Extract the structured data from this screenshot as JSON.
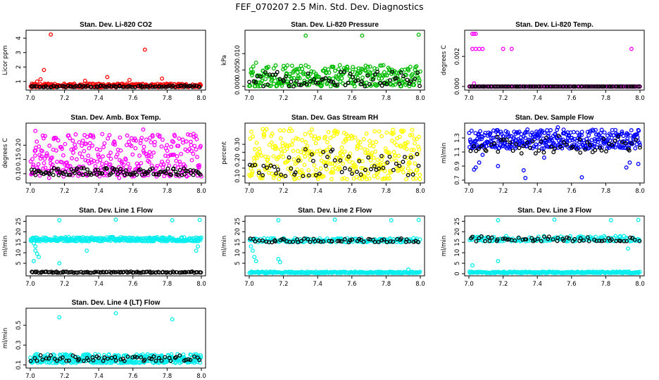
{
  "page": {
    "title": "FEF_070207  2.5 Min. Std. Dev. Diagnostics"
  },
  "chart_data": [
    {
      "type": "scatter",
      "title": "Stan. Dev. Li-820 CO2",
      "xlabel": "",
      "ylabel": "Licor ppm",
      "xlim": [
        7.0,
        8.0
      ],
      "ylim": [
        0.55,
        4.4
      ],
      "x_ticks": [
        7.0,
        7.2,
        7.4,
        7.6,
        7.8,
        8.0
      ],
      "y_ticks": [
        1,
        2,
        3,
        4
      ],
      "series": [
        {
          "color": "#ff0000",
          "band": [
            0.6,
            0.85
          ],
          "n": 260,
          "outliers": [
            [
              7.12,
              4.25
            ],
            [
              7.67,
              3.2
            ],
            [
              7.08,
              1.8
            ],
            [
              7.06,
              1.15
            ],
            [
              7.32,
              1.05
            ],
            [
              7.58,
              1.1
            ],
            [
              7.77,
              1.2
            ],
            [
              7.45,
              1.3
            ],
            [
              7.04,
              1.0
            ]
          ]
        },
        {
          "color": "#000000",
          "band": [
            0.6,
            0.72
          ],
          "n": 90,
          "outliers": []
        }
      ]
    },
    {
      "type": "scatter",
      "title": "Stan. Dev. Li-820 Pressure",
      "xlabel": "",
      "ylabel": "kPa",
      "xlim": [
        7.0,
        8.0
      ],
      "ylim": [
        -0.0005,
        0.0165
      ],
      "x_ticks": [
        7.0,
        7.2,
        7.4,
        7.6,
        7.8,
        8.0
      ],
      "y_ticks": [
        0.0,
        0.005,
        0.01
      ],
      "y_tick_labels": [
        "0.000",
        "0.005",
        "0.010"
      ],
      "series": [
        {
          "color": "#00bb00",
          "band": [
            0.0,
            0.0065
          ],
          "n": 300,
          "outliers": [
            [
              7.33,
              0.0155
            ],
            [
              7.66,
              0.0155
            ],
            [
              7.99,
              0.0158
            ],
            [
              7.04,
              0.0072
            ]
          ]
        },
        {
          "color": "#000000",
          "band": [
            0.0,
            0.0045
          ],
          "n": 70,
          "outliers": []
        }
      ]
    },
    {
      "type": "scatter",
      "title": "Stan. Dev. Li-820 Temp.",
      "xlabel": "",
      "ylabel": "degrees C",
      "xlim": [
        7.0,
        8.0
      ],
      "ylim": [
        -0.0001,
        0.0036
      ],
      "x_ticks": [
        7.0,
        7.2,
        7.4,
        7.6,
        7.8,
        8.0
      ],
      "y_ticks": [
        0.0,
        0.002
      ],
      "y_tick_labels": [
        "0.000",
        "0.002"
      ],
      "series": [
        {
          "color": "#ff00ff",
          "band": [
            0.0,
            0.0
          ],
          "n": 150,
          "outliers": [
            [
              7.02,
              0.0035
            ],
            [
              7.03,
              0.0035
            ],
            [
              7.04,
              0.0035
            ],
            [
              7.02,
              0.0025
            ],
            [
              7.04,
              0.0025
            ],
            [
              7.06,
              0.0025
            ],
            [
              7.08,
              0.0025
            ],
            [
              7.2,
              0.0025
            ],
            [
              7.25,
              0.0025
            ],
            [
              7.95,
              0.0025
            ],
            [
              7.03,
              0.0002
            ]
          ]
        },
        {
          "color": "#000000",
          "band": [
            0.0,
            0.0
          ],
          "n": 100,
          "outliers": []
        }
      ]
    },
    {
      "type": "scatter",
      "title": "Stan. Dev. Amb. Box Temp.",
      "xlabel": "",
      "ylabel": "degrees C",
      "xlim": [
        7.0,
        8.0
      ],
      "ylim": [
        0.075,
        0.27
      ],
      "x_ticks": [
        7.0,
        7.2,
        7.4,
        7.6,
        7.8,
        8.0
      ],
      "y_ticks": [
        0.1,
        0.15,
        0.2
      ],
      "y_tick_labels": [
        "0.10",
        "0.15",
        "0.20"
      ],
      "series": [
        {
          "color": "#ff00ff",
          "band": [
            0.09,
            0.24
          ],
          "n": 340,
          "outliers": [
            [
              7.66,
              0.255
            ],
            [
              7.03,
              0.25
            ],
            [
              7.11,
              0.085
            ],
            [
              7.52,
              0.085
            ]
          ]
        },
        {
          "color": "#000000",
          "band": [
            0.095,
            0.12
          ],
          "n": 110,
          "outliers": []
        }
      ]
    },
    {
      "type": "scatter",
      "title": "Stan. Dev. Gas Stream RH",
      "xlabel": "",
      "ylabel": "percent",
      "xlim": [
        7.0,
        8.0
      ],
      "ylim": [
        0.07,
        0.42
      ],
      "x_ticks": [
        7.0,
        7.2,
        7.4,
        7.6,
        7.8,
        8.0
      ],
      "y_ticks": [
        0.1,
        0.15,
        0.2,
        0.25,
        0.3
      ],
      "y_tick_labels": [
        "0.10",
        "",
        "0.20",
        "",
        "0.30"
      ],
      "series": [
        {
          "color": "#ffff00",
          "band": [
            0.08,
            0.4
          ],
          "n": 380,
          "outliers": []
        },
        {
          "color": "#000000",
          "band": [
            0.1,
            0.27
          ],
          "n": 60,
          "outliers": []
        }
      ]
    },
    {
      "type": "scatter",
      "title": "Stan. Dev. Sample Flow",
      "xlabel": "",
      "ylabel": "ml/min",
      "xlim": [
        7.0,
        8.0
      ],
      "ylim": [
        0.69,
        1.48
      ],
      "x_ticks": [
        7.0,
        7.2,
        7.4,
        7.6,
        7.8,
        8.0
      ],
      "y_ticks": [
        0.7,
        0.9,
        1.1,
        1.3
      ],
      "y_tick_labels": [
        "0.7",
        "0.9",
        "1.1",
        "1.3"
      ],
      "series": [
        {
          "color": "#0000ff",
          "band": [
            1.15,
            1.42
          ],
          "n": 380,
          "outliers": [
            [
              7.03,
              0.85
            ],
            [
              7.04,
              0.88
            ],
            [
              7.06,
              0.95
            ],
            [
              7.17,
              0.9
            ],
            [
              7.33,
              0.73
            ],
            [
              7.32,
              0.84
            ],
            [
              7.44,
              1.02
            ],
            [
              7.52,
              1.45
            ],
            [
              7.66,
              0.74
            ],
            [
              7.94,
              0.95
            ],
            [
              7.92,
              0.88
            ],
            [
              7.99,
              0.93
            ],
            [
              7.08,
              1.06
            ]
          ]
        },
        {
          "color": "#000000",
          "band": [
            1.08,
            1.33
          ],
          "n": 60,
          "outliers": []
        }
      ]
    },
    {
      "type": "scatter",
      "title": "Stan. Dev. Line 1 Flow",
      "xlabel": "",
      "ylabel": "ml/min",
      "xlim": [
        7.0,
        8.0
      ],
      "ylim": [
        0.0,
        26.5
      ],
      "x_ticks": [
        7.0,
        7.2,
        7.4,
        7.6,
        7.8,
        8.0
      ],
      "y_ticks": [
        5,
        10,
        15,
        20,
        25
      ],
      "series": [
        {
          "color": "#00eeee",
          "band": [
            15.5,
            17.5
          ],
          "n": 300,
          "outliers": [
            [
              7.17,
              25.5
            ],
            [
              7.5,
              25.8
            ],
            [
              7.83,
              25.5
            ],
            [
              7.99,
              25.7
            ],
            [
              7.02,
              14.5
            ],
            [
              7.03,
              13.0
            ],
            [
              7.03,
              11.0
            ],
            [
              7.04,
              9.5
            ],
            [
              7.05,
              8.0
            ],
            [
              7.02,
              6.0
            ],
            [
              7.17,
              5.0
            ],
            [
              7.33,
              11.0
            ],
            [
              7.97,
              11.0
            ],
            [
              7.98,
              13.0
            ]
          ]
        },
        {
          "color": "#000000",
          "band": [
            0.5,
            1.0
          ],
          "n": 110,
          "outliers": []
        }
      ]
    },
    {
      "type": "scatter",
      "title": "Stan. Dev. Line 2 Flow",
      "xlabel": "",
      "ylabel": "ml/min",
      "xlim": [
        7.0,
        8.0
      ],
      "ylim": [
        0.0,
        26.5
      ],
      "x_ticks": [
        7.0,
        7.2,
        7.4,
        7.6,
        7.8,
        8.0
      ],
      "y_ticks": [
        5,
        10,
        15,
        20,
        25
      ],
      "series": [
        {
          "color": "#00eeee",
          "band": [
            0.3,
            1.0
          ],
          "n": 220,
          "outliers": [
            [
              7.17,
              25.5
            ],
            [
              7.5,
              25.8
            ],
            [
              7.83,
              25.5
            ],
            [
              7.99,
              25.7
            ],
            [
              7.01,
              13.0
            ],
            [
              7.02,
              11.0
            ],
            [
              7.03,
              8.0
            ],
            [
              7.04,
              6.0
            ],
            [
              7.17,
              7.0
            ],
            [
              7.18,
              5.5
            ],
            [
              7.93,
              2.0
            ]
          ]
        },
        {
          "color": "#00eeee",
          "band": [
            15.0,
            17.0
          ],
          "n": 160,
          "outliers": []
        },
        {
          "color": "#000000",
          "band": [
            15.0,
            16.8
          ],
          "n": 60,
          "outliers": []
        }
      ]
    },
    {
      "type": "scatter",
      "title": "Stan. Dev. Line 3 Flow",
      "xlabel": "",
      "ylabel": "ml/min",
      "xlim": [
        7.0,
        8.0
      ],
      "ylim": [
        0.0,
        26.5
      ],
      "x_ticks": [
        7.0,
        7.2,
        7.4,
        7.6,
        7.8,
        8.0
      ],
      "y_ticks": [
        0,
        5,
        10,
        15,
        20,
        25
      ],
      "series": [
        {
          "color": "#00eeee",
          "band": [
            0.3,
            1.0
          ],
          "n": 220,
          "outliers": [
            [
              7.17,
              25.5
            ],
            [
              7.5,
              25.8
            ],
            [
              7.83,
              25.5
            ],
            [
              7.99,
              25.7
            ],
            [
              7.02,
              4.0
            ],
            [
              7.17,
              6.0
            ],
            [
              7.93,
              12.0
            ]
          ]
        },
        {
          "color": "#00eeee",
          "band": [
            15.5,
            18.0
          ],
          "n": 160,
          "outliers": []
        },
        {
          "color": "#000000",
          "band": [
            15.5,
            17.8
          ],
          "n": 60,
          "outliers": []
        }
      ]
    },
    {
      "type": "scatter",
      "title": "Stan. Dev. Line 4 (LT) Flow",
      "xlabel": "",
      "ylabel": "ml/min",
      "xlim": [
        7.0,
        8.0
      ],
      "ylim": [
        0.09,
        0.65
      ],
      "x_ticks": [
        7.0,
        7.2,
        7.4,
        7.6,
        7.8,
        8.0
      ],
      "y_ticks": [
        0.1,
        0.3,
        0.5
      ],
      "y_tick_labels": [
        "0.1",
        "0.3",
        "0.5"
      ],
      "series": [
        {
          "color": "#00eeee",
          "band": [
            0.12,
            0.21
          ],
          "n": 340,
          "outliers": [
            [
              7.5,
              0.62
            ],
            [
              7.17,
              0.58
            ],
            [
              7.83,
              0.56
            ],
            [
              7.01,
              0.13
            ]
          ]
        },
        {
          "color": "#000000",
          "band": [
            0.14,
            0.2
          ],
          "n": 60,
          "outliers": []
        }
      ]
    }
  ]
}
